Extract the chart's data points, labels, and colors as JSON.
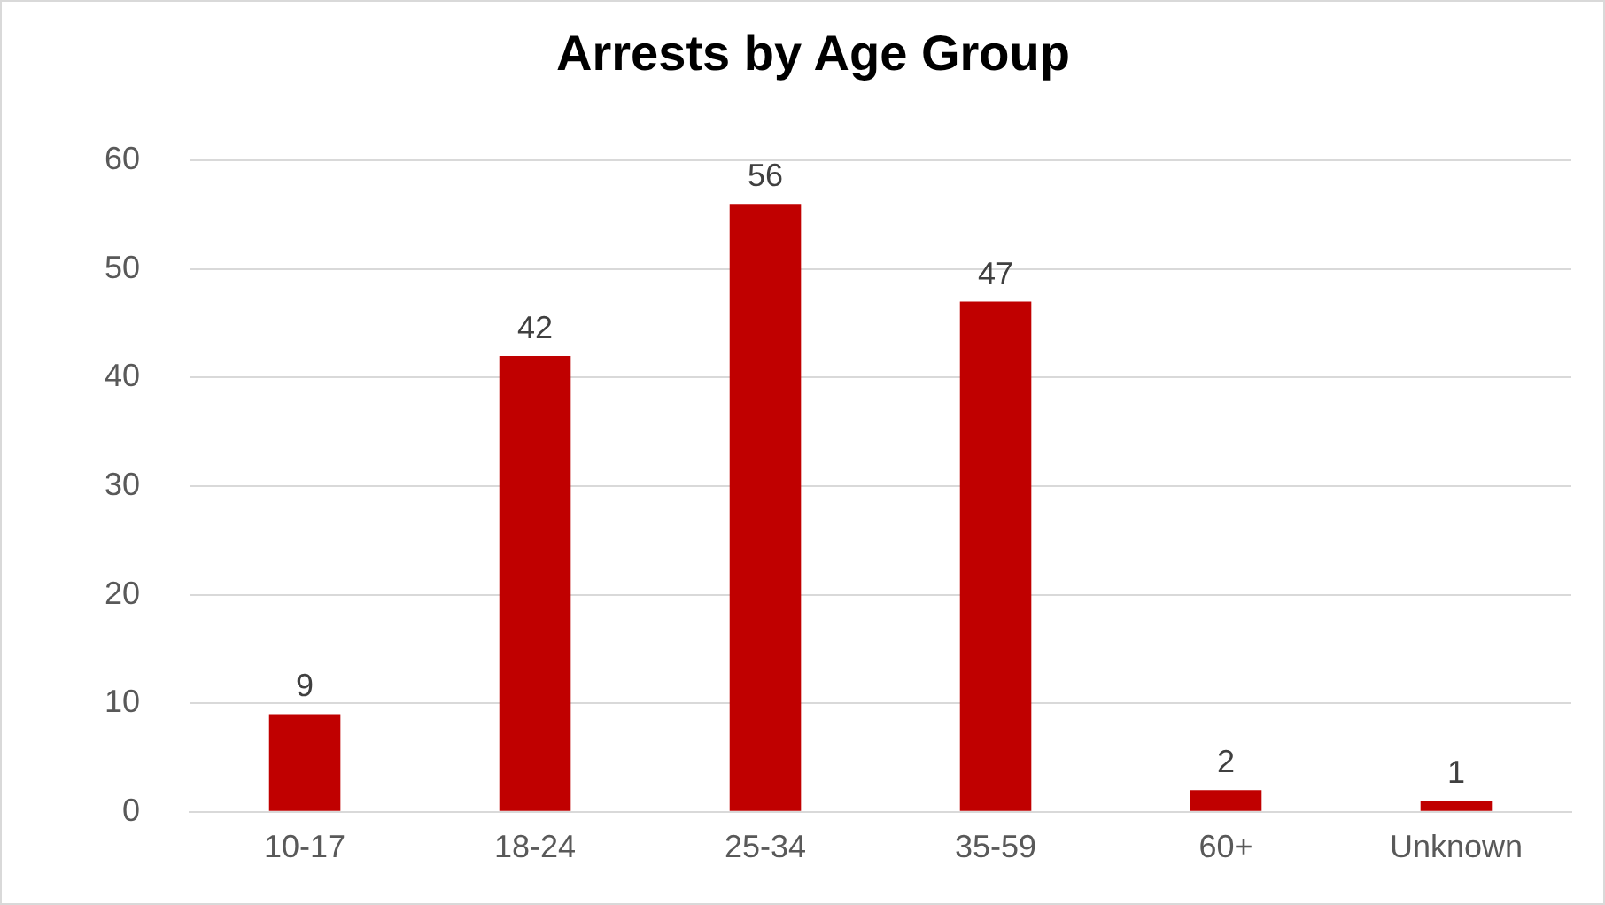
{
  "chart_data": {
    "type": "bar",
    "title": "Arrests by Age Group",
    "categories": [
      "10-17",
      "18-24",
      "25-34",
      "35-59",
      "60+",
      "Unknown"
    ],
    "values": [
      9,
      42,
      56,
      47,
      2,
      1
    ],
    "color": "#c00000",
    "ylim": [
      0,
      60
    ],
    "yticks": [
      0,
      10,
      20,
      30,
      40,
      50,
      60
    ],
    "grid": "y",
    "data_labels": true
  }
}
